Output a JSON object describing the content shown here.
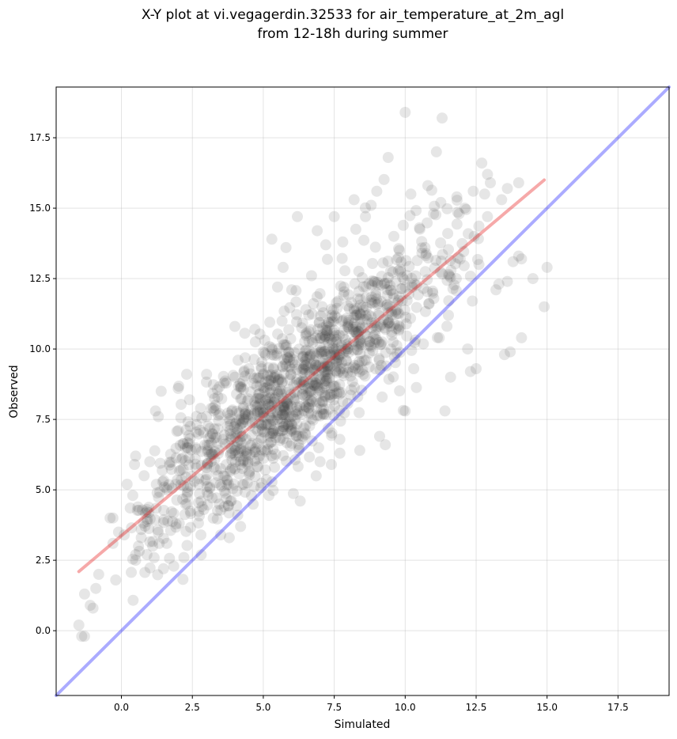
{
  "chart_data": {
    "type": "scatter",
    "title": [
      "X-Y plot at vi.vegagerdin.32533 for air_temperature_at_2m_agl",
      "from 12-18h during summer"
    ],
    "xlabel": "Simulated",
    "ylabel": "Observed",
    "xlim": [
      -2.3,
      19.3
    ],
    "ylim": [
      -2.3,
      19.3
    ],
    "xticks": [
      0.0,
      2.5,
      5.0,
      7.5,
      10.0,
      12.5,
      15.0,
      17.5
    ],
    "yticks": [
      0.0,
      2.5,
      5.0,
      7.5,
      10.0,
      12.5,
      15.0,
      17.5
    ],
    "tick_labels": [
      "0.0",
      "2.5",
      "5.0",
      "7.5",
      "10.0",
      "12.5",
      "15.0",
      "17.5"
    ],
    "grid": true,
    "marker_color": "#404040",
    "marker_alpha": 0.13,
    "series": [
      {
        "points": [
          [
            -1.5,
            0.2
          ],
          [
            -1.3,
            -0.2
          ],
          [
            -1.4,
            -0.2
          ],
          [
            -1.3,
            1.3
          ],
          [
            -1.1,
            0.9
          ],
          [
            -1.0,
            0.8
          ],
          [
            -0.9,
            1.5
          ],
          [
            -0.8,
            2.0
          ],
          [
            -0.4,
            4.0
          ],
          [
            -0.3,
            4.0
          ],
          [
            -0.3,
            3.1
          ],
          [
            -0.2,
            1.8
          ],
          [
            -0.1,
            3.5
          ],
          [
            0.1,
            3.4
          ],
          [
            0.2,
            5.2
          ],
          [
            0.4,
            4.8
          ],
          [
            0.5,
            2.7
          ],
          [
            0.5,
            2.5
          ],
          [
            0.6,
            3.0
          ],
          [
            0.7,
            3.3
          ],
          [
            0.8,
            5.5
          ],
          [
            0.9,
            4.3
          ],
          [
            1.0,
            6.0
          ],
          [
            1.1,
            3.0
          ],
          [
            0.5,
            6.2
          ],
          [
            0.9,
            2.7
          ],
          [
            1.2,
            7.8
          ],
          [
            1.3,
            7.6
          ],
          [
            1.4,
            8.5
          ],
          [
            1.6,
            3.1
          ],
          [
            2.0,
            8.6
          ],
          [
            2.0,
            7.1
          ],
          [
            2.2,
            2.6
          ],
          [
            2.3,
            9.1
          ],
          [
            2.4,
            8.2
          ],
          [
            2.6,
            6.1
          ],
          [
            2.8,
            3.4
          ],
          [
            3.0,
            9.1
          ],
          [
            3.2,
            7.0
          ],
          [
            3.4,
            8.3
          ],
          [
            3.5,
            3.4
          ],
          [
            3.6,
            5.5
          ],
          [
            3.8,
            3.3
          ],
          [
            4.0,
            10.8
          ],
          [
            4.1,
            4.1
          ],
          [
            4.2,
            3.7
          ],
          [
            4.5,
            5.6
          ],
          [
            4.7,
            10.7
          ],
          [
            5.0,
            9.9
          ],
          [
            5.2,
            4.8
          ],
          [
            5.3,
            13.9
          ],
          [
            5.5,
            12.2
          ],
          [
            5.7,
            12.9
          ],
          [
            5.8,
            13.6
          ],
          [
            6.0,
            12.1
          ],
          [
            6.1,
            8.2
          ],
          [
            6.2,
            14.7
          ],
          [
            6.3,
            4.6
          ],
          [
            6.5,
            11.4
          ],
          [
            6.7,
            12.6
          ],
          [
            6.9,
            14.2
          ],
          [
            7.0,
            6.0
          ],
          [
            7.2,
            13.7
          ],
          [
            7.4,
            5.9
          ],
          [
            7.5,
            14.7
          ],
          [
            7.7,
            6.3
          ],
          [
            7.8,
            13.8
          ],
          [
            8.0,
            10.2
          ],
          [
            8.2,
            15.3
          ],
          [
            8.4,
            6.4
          ],
          [
            8.6,
            14.7
          ],
          [
            8.8,
            15.1
          ],
          [
            9.0,
            15.6
          ],
          [
            9.1,
            6.9
          ],
          [
            9.3,
            6.6
          ],
          [
            9.4,
            16.8
          ],
          [
            9.6,
            14.0
          ],
          [
            9.8,
            13.5
          ],
          [
            10.0,
            7.8
          ],
          [
            10.0,
            18.4
          ],
          [
            10.2,
            15.5
          ],
          [
            10.3,
            9.3
          ],
          [
            10.5,
            14.3
          ],
          [
            10.7,
            13.6
          ],
          [
            10.8,
            15.8
          ],
          [
            11.0,
            14.8
          ],
          [
            11.1,
            17.0
          ],
          [
            11.2,
            10.4
          ],
          [
            11.3,
            18.2
          ],
          [
            11.4,
            7.8
          ],
          [
            11.5,
            14.1
          ],
          [
            11.6,
            9.0
          ],
          [
            11.8,
            12.5
          ],
          [
            11.9,
            14.8
          ],
          [
            12.1,
            15.0
          ],
          [
            12.2,
            10.0
          ],
          [
            12.3,
            9.2
          ],
          [
            12.4,
            15.6
          ],
          [
            12.5,
            9.3
          ],
          [
            12.6,
            13.0
          ],
          [
            12.7,
            16.6
          ],
          [
            12.8,
            15.5
          ],
          [
            12.9,
            16.2
          ],
          [
            13.0,
            15.9
          ],
          [
            13.2,
            12.1
          ],
          [
            13.3,
            12.3
          ],
          [
            13.4,
            15.3
          ],
          [
            13.5,
            9.8
          ],
          [
            13.6,
            15.7
          ],
          [
            13.7,
            9.9
          ],
          [
            13.8,
            13.1
          ],
          [
            14.0,
            13.3
          ],
          [
            14.0,
            15.9
          ],
          [
            14.1,
            10.4
          ],
          [
            14.1,
            13.2
          ],
          [
            14.5,
            12.5
          ],
          [
            14.9,
            11.5
          ],
          [
            15.0,
            12.9
          ],
          [
            13.6,
            12.4
          ],
          [
            12.9,
            14.7
          ]
        ],
        "dense_cluster": {
          "count": 1250,
          "description_x_range": [
            0.3,
            12.6
          ],
          "slope": 0.85,
          "intercept": 3.4,
          "spread": 1.25
        }
      }
    ],
    "reference_lines": [
      {
        "kind": "identity",
        "color": "#0000ff",
        "alpha": 0.33,
        "x": [
          -2.3,
          19.3
        ],
        "y": [
          -2.3,
          19.3
        ]
      },
      {
        "kind": "fit",
        "color": "#e81c1c",
        "alpha": 0.38,
        "x": [
          -1.5,
          14.9
        ],
        "y": [
          2.1,
          16.0
        ]
      }
    ]
  }
}
